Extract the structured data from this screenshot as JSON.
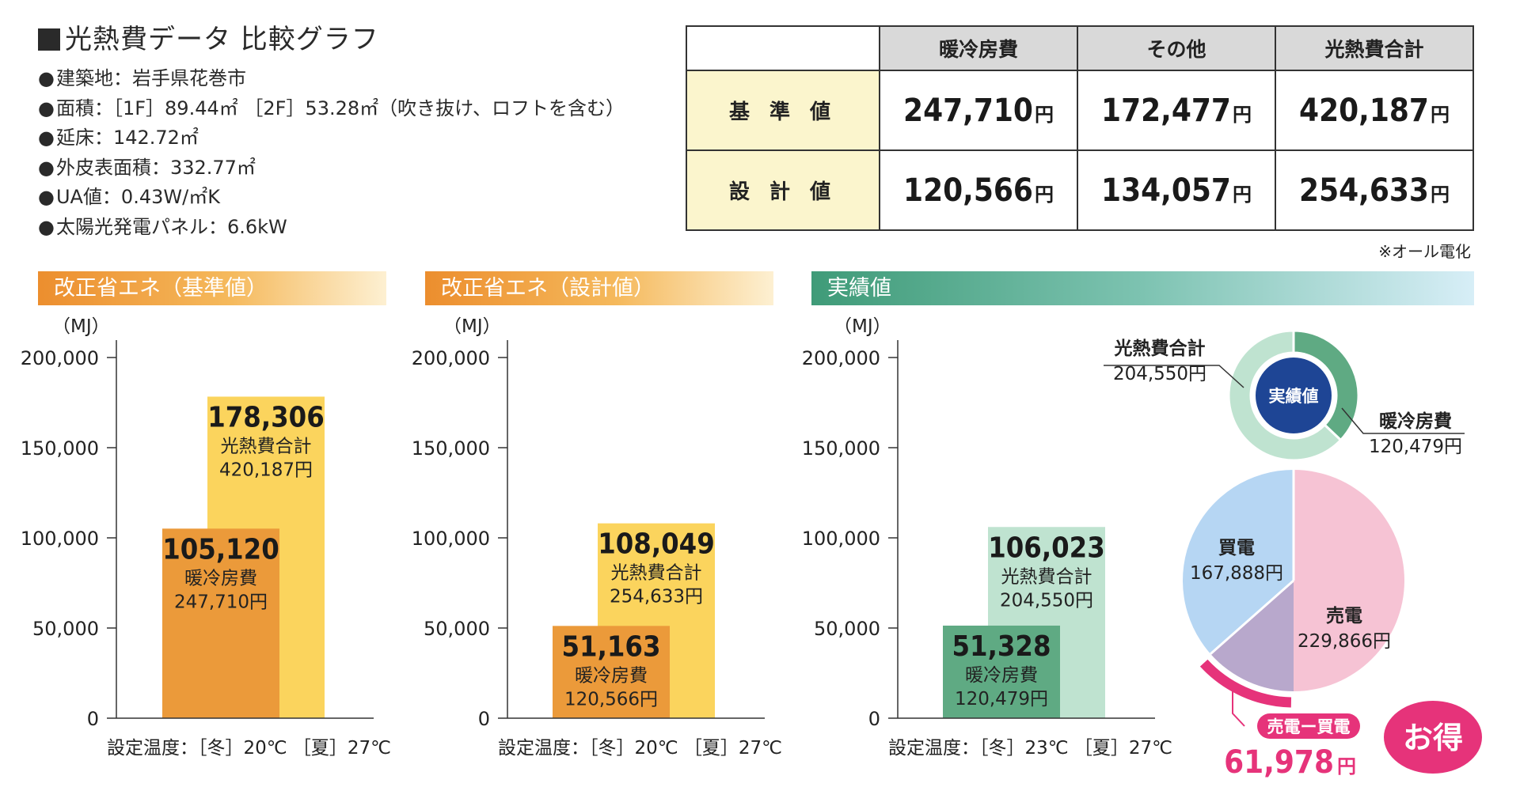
{
  "info": {
    "title": "光熱費データ 比較グラフ",
    "items": [
      "建築地：岩手県花巻市",
      "面積：［1F］89.44㎡ ［2F］53.28㎡（吹き抜け、ロフトを含む）",
      "延床：142.72㎡",
      "外皮表面積：332.77㎡",
      "UA値：0.43W/㎡K",
      "太陽光発電パネル：6.6kW"
    ]
  },
  "cost_table": {
    "headers": [
      "暖冷房費",
      "その他",
      "光熱費合計"
    ],
    "rows": [
      {
        "label": "基 準 値",
        "values": [
          "247,710",
          "172,477",
          "420,187"
        ]
      },
      {
        "label": "設 計 値",
        "values": [
          "120,566",
          "134,057",
          "254,633"
        ]
      }
    ],
    "yen": "円",
    "note": "※オール電化"
  },
  "chart_data": [
    {
      "type": "bar",
      "title": "改正省エネ（基準値）",
      "ylabel": "（MJ）",
      "ylim": [
        0,
        200000
      ],
      "yticks": [
        "0",
        "50,000",
        "100,000",
        "150,000",
        "200,000"
      ],
      "series": [
        {
          "name": "暖冷房費",
          "value": 105120,
          "value_label": "105,120",
          "cost": "247,710円"
        },
        {
          "name": "光熱費合計",
          "value": 178306,
          "value_label": "178,306",
          "cost": "420,187円"
        }
      ],
      "caption": "設定温度：［冬］20℃ ［夏］27℃"
    },
    {
      "type": "bar",
      "title": "改正省エネ（設計値）",
      "ylabel": "（MJ）",
      "ylim": [
        0,
        200000
      ],
      "yticks": [
        "0",
        "50,000",
        "100,000",
        "150,000",
        "200,000"
      ],
      "series": [
        {
          "name": "暖冷房費",
          "value": 51163,
          "value_label": "51,163",
          "cost": "120,566円"
        },
        {
          "name": "光熱費合計",
          "value": 108049,
          "value_label": "108,049",
          "cost": "254,633円"
        }
      ],
      "caption": "設定温度：［冬］20℃ ［夏］27℃"
    },
    {
      "type": "bar",
      "title": "実績値",
      "ylabel": "（MJ）",
      "ylim": [
        0,
        200000
      ],
      "yticks": [
        "0",
        "50,000",
        "100,000",
        "150,000",
        "200,000"
      ],
      "series": [
        {
          "name": "暖冷房費",
          "value": 51328,
          "value_label": "51,328",
          "cost": "120,479円"
        },
        {
          "name": "光熱費合計",
          "value": 106023,
          "value_label": "106,023",
          "cost": "204,550円"
        }
      ],
      "caption": "設定温度：［冬］23℃ ［夏］27℃"
    },
    {
      "type": "pie",
      "title": "実績値",
      "slices": [
        {
          "label": "暖冷房費",
          "value": 120479,
          "value_label": "120,479円"
        },
        {
          "label": "光熱費合計",
          "value": 204550,
          "value_label": "204,550円"
        }
      ]
    },
    {
      "type": "pie",
      "slices": [
        {
          "label": "売電",
          "value": 229866,
          "value_label": "229,866円"
        },
        {
          "label": "買電",
          "value": 167888,
          "value_label": "167,888円"
        }
      ],
      "difference": {
        "label": "売電ー買電",
        "value": "61,978",
        "unit": "円"
      },
      "badge": "お得"
    }
  ],
  "colors": {
    "orange_dark": "#eb9a3a",
    "orange_light": "#fbd45d",
    "green_dark": "#5faa83",
    "green_light": "#bfe3d0",
    "navy": "#1e4595",
    "pink": "#f6c3d4",
    "blue": "#b6d6f3",
    "purple": "#b8a8cc",
    "magenta": "#e6337a"
  }
}
